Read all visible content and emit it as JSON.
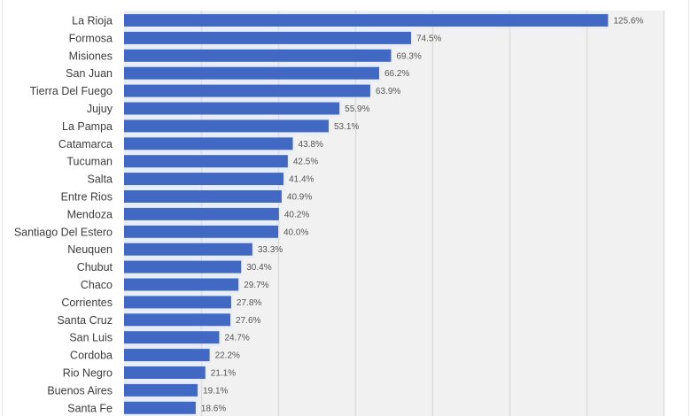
{
  "chart_data": {
    "type": "bar",
    "orientation": "horizontal",
    "title": "",
    "xlabel": "",
    "ylabel": "",
    "xlim": [
      0,
      140
    ],
    "grid": true,
    "gridline_step": 20,
    "value_suffix": "%",
    "bar_color": "#4169c4",
    "plot_background": "#f1f1f1",
    "legend": "none",
    "categories": [
      "La Rioja",
      "Formosa",
      "Misiones",
      "San Juan",
      "Tierra Del Fuego",
      "Jujuy",
      "La Pampa",
      "Catamarca",
      "Tucuman",
      "Salta",
      "Entre Rios",
      "Mendoza",
      "Santiago Del Estero",
      "Neuquen",
      "Chubut",
      "Chaco",
      "Corrientes",
      "Santa Cruz",
      "San Luis",
      "Cordoba",
      "Rio Negro",
      "Buenos Aires",
      "Santa Fe"
    ],
    "values": [
      125.6,
      74.5,
      69.3,
      66.2,
      63.9,
      55.9,
      53.1,
      43.8,
      42.5,
      41.4,
      40.9,
      40.2,
      40.0,
      33.3,
      30.4,
      29.7,
      27.8,
      27.6,
      24.7,
      22.2,
      21.1,
      19.1,
      18.6
    ],
    "value_labels": [
      "125.6%",
      "74.5%",
      "69.3%",
      "66.2%",
      "63.9%",
      "55.9%",
      "53.1%",
      "43.8%",
      "42.5%",
      "41.4%",
      "40.9%",
      "40.2%",
      "40.0%",
      "33.3%",
      "30.4%",
      "29.7%",
      "27.8%",
      "27.6%",
      "24.7%",
      "22.2%",
      "21.1%",
      "19.1%",
      "18.6%"
    ]
  }
}
